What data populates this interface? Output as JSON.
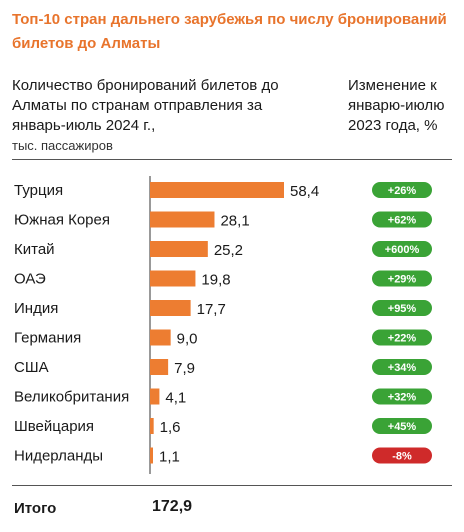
{
  "title": "Топ-10 стран дальнего зарубежья по числу бронирований билетов до Алматы",
  "subtitle": "Количество бронирований билетов до Алматы по странам отправления за январь-июль 2024 г.,",
  "unit": "тыс. пассажиров",
  "change_header": "Изменение к январю-июлю 2023 года, %",
  "colors": {
    "accent": "#e8742c",
    "bar": "#ed7d31",
    "positive": "#3aa336",
    "negative": "#cf2a2a"
  },
  "chart_data": {
    "type": "bar",
    "orientation": "horizontal",
    "categories": [
      "Турция",
      "Южная Корея",
      "Китай",
      "ОАЭ",
      "Индия",
      "Германия",
      "США",
      "Великобритания",
      "Швейцария",
      "Нидерланды"
    ],
    "values": [
      58.4,
      28.1,
      25.2,
      19.8,
      17.7,
      9.0,
      7.9,
      4.1,
      1.6,
      1.1
    ],
    "value_labels": [
      "58,4",
      "28,1",
      "25,2",
      "19,8",
      "17,7",
      "9,0",
      "7,9",
      "4,1",
      "1,6",
      "1,1"
    ],
    "changes": [
      "+26%",
      "+62%",
      "+600%",
      "+29%",
      "+95%",
      "+22%",
      "+34%",
      "+32%",
      "+45%",
      "-8%"
    ],
    "change_values": [
      26,
      62,
      600,
      29,
      95,
      22,
      34,
      32,
      45,
      -8
    ],
    "xlim": [
      0,
      58.4
    ]
  },
  "total": {
    "label": "Итого",
    "value": "172,9"
  }
}
